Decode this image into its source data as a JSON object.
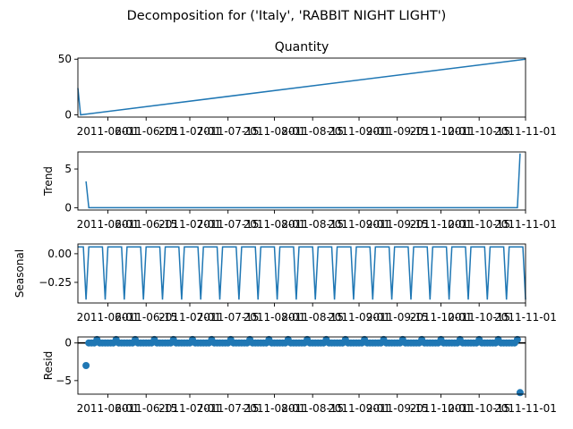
{
  "figure": {
    "suptitle": "Decomposition for ('Italy', 'RABBIT NIGHT LIGHT')"
  },
  "chart_data": [
    {
      "type": "line",
      "name": "observed",
      "title": "Quantity",
      "ylabel": "",
      "ylim": [
        -2,
        51
      ],
      "yticks": [
        0,
        50
      ],
      "xlim": [
        "2011-05-21",
        "2011-11-01"
      ],
      "xticks": [
        "2011-06-01",
        "2011-06-15",
        "2011-07-01",
        "2011-07-15",
        "2011-08-01",
        "2011-08-15",
        "2011-09-01",
        "2011-09-15",
        "2011-10-01",
        "2011-10-15",
        "2011-11-01"
      ],
      "x": [
        "2011-05-21",
        "2011-05-22",
        "2011-11-01"
      ],
      "y": [
        24,
        0,
        50
      ]
    },
    {
      "type": "line",
      "name": "trend",
      "title": "",
      "ylabel": "Trend",
      "ylim": [
        -0.3,
        7.2
      ],
      "yticks": [
        0,
        5
      ],
      "xlim": [
        "2011-05-21",
        "2011-11-01"
      ],
      "xticks": [
        "2011-06-01",
        "2011-06-15",
        "2011-07-01",
        "2011-07-15",
        "2011-08-01",
        "2011-08-15",
        "2011-09-01",
        "2011-09-15",
        "2011-10-01",
        "2011-10-15",
        "2011-11-01"
      ],
      "x": [
        "2011-05-24",
        "2011-05-25",
        "2011-10-29",
        "2011-10-30"
      ],
      "y": [
        3.4,
        0,
        0,
        7.0
      ]
    },
    {
      "type": "line",
      "name": "seasonal",
      "title": "",
      "ylabel": "Seasonal",
      "ylim": [
        -0.43,
        0.085
      ],
      "yticks": [
        0.0,
        -0.25
      ],
      "ytick_labels": [
        "0.00",
        "−0.25"
      ],
      "xlim": [
        "2011-05-21",
        "2011-11-01"
      ],
      "xticks": [
        "2011-06-01",
        "2011-06-15",
        "2011-07-01",
        "2011-07-15",
        "2011-08-01",
        "2011-08-15",
        "2011-09-01",
        "2011-09-15",
        "2011-10-01",
        "2011-10-15",
        "2011-11-01"
      ],
      "period_days": 7,
      "start": "2011-05-21",
      "end": "2011-11-01",
      "high_value": 0.06,
      "low_value": -0.4,
      "first_low": "2011-05-24"
    },
    {
      "type": "scatter",
      "name": "resid",
      "title": "",
      "ylabel": "Resid",
      "ylim": [
        -6.8,
        0.8
      ],
      "yticks": [
        0,
        -5
      ],
      "ytick_labels": [
        "0",
        "−5"
      ],
      "xlim": [
        "2011-05-21",
        "2011-11-01"
      ],
      "xticks": [
        "2011-06-01",
        "2011-06-15",
        "2011-07-01",
        "2011-07-15",
        "2011-08-01",
        "2011-08-15",
        "2011-09-01",
        "2011-09-15",
        "2011-10-01",
        "2011-10-15",
        "2011-11-01"
      ],
      "zero_line": true,
      "start": "2011-05-24",
      "end": "2011-10-30",
      "baseline": 0,
      "outliers": [
        {
          "x": "2011-05-24",
          "y": -3.0
        },
        {
          "x": "2011-10-30",
          "y": -6.6
        }
      ],
      "spike_value": 0.45,
      "spike_period_days": 7,
      "first_spike": "2011-05-28"
    }
  ],
  "colors": {
    "line": "#1f77b4",
    "axes": "#000000",
    "zero_line": "#000000"
  }
}
